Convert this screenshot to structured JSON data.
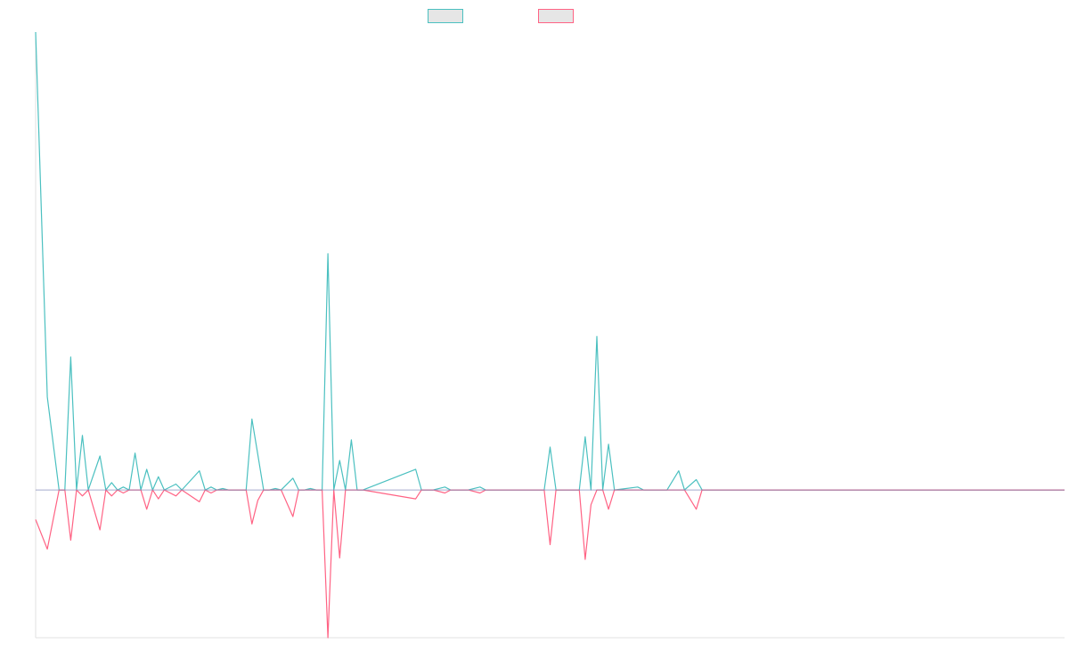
{
  "chart_data": {
    "type": "line",
    "title": "",
    "xlabel": "",
    "ylabel": "",
    "legend_position": "top-center",
    "grid": false,
    "ylim": [
      -100,
      310
    ],
    "xlim": [
      0,
      176
    ],
    "series": [
      {
        "color": "#4bc0c0",
        "points": [
          [
            0,
            310
          ],
          [
            2,
            63
          ],
          [
            4,
            0
          ],
          [
            5,
            0
          ],
          [
            6,
            90
          ],
          [
            7,
            0
          ],
          [
            8,
            37
          ],
          [
            9,
            0
          ],
          [
            11,
            23
          ],
          [
            12,
            0
          ],
          [
            13,
            5
          ],
          [
            14,
            0
          ],
          [
            15,
            2
          ],
          [
            16,
            0
          ],
          [
            17,
            25
          ],
          [
            18,
            0
          ],
          [
            19,
            14
          ],
          [
            20,
            0
          ],
          [
            21,
            9
          ],
          [
            22,
            0
          ],
          [
            24,
            4
          ],
          [
            25,
            0
          ],
          [
            28,
            13
          ],
          [
            29,
            0
          ],
          [
            30,
            2
          ],
          [
            31,
            0
          ],
          [
            32,
            1
          ],
          [
            33,
            0
          ],
          [
            34,
            0
          ],
          [
            35,
            0
          ],
          [
            36,
            0
          ],
          [
            37,
            48
          ],
          [
            38,
            24
          ],
          [
            39,
            0
          ],
          [
            40,
            0
          ],
          [
            41,
            1
          ],
          [
            42,
            0
          ],
          [
            44,
            8
          ],
          [
            45,
            0
          ],
          [
            46,
            0
          ],
          [
            47,
            1
          ],
          [
            48,
            0
          ],
          [
            49,
            0
          ],
          [
            50,
            160
          ],
          [
            51,
            0
          ],
          [
            52,
            20
          ],
          [
            53,
            0
          ],
          [
            54,
            34
          ],
          [
            55,
            0
          ],
          [
            56,
            0
          ],
          [
            65,
            14
          ],
          [
            66,
            0
          ],
          [
            68,
            0
          ],
          [
            70,
            2
          ],
          [
            71,
            0
          ],
          [
            74,
            0
          ],
          [
            76,
            2
          ],
          [
            77,
            0
          ],
          [
            87,
            0
          ],
          [
            88,
            29
          ],
          [
            89,
            0
          ],
          [
            93,
            0
          ],
          [
            94,
            36
          ],
          [
            95,
            0
          ],
          [
            96,
            104
          ],
          [
            97,
            0
          ],
          [
            98,
            31
          ],
          [
            99,
            0
          ],
          [
            103,
            2
          ],
          [
            104,
            0
          ],
          [
            105,
            0
          ],
          [
            106,
            0
          ],
          [
            108,
            0
          ],
          [
            110,
            13
          ],
          [
            111,
            0
          ],
          [
            113,
            7
          ],
          [
            114,
            0
          ],
          [
            176,
            0
          ]
        ]
      },
      {
        "color": "#ff6384",
        "points": [
          [
            0,
            -20
          ],
          [
            2,
            -40
          ],
          [
            4,
            0
          ],
          [
            5,
            0
          ],
          [
            6,
            -34
          ],
          [
            7,
            0
          ],
          [
            8,
            -4
          ],
          [
            9,
            0
          ],
          [
            11,
            -27
          ],
          [
            12,
            0
          ],
          [
            13,
            -4
          ],
          [
            14,
            0
          ],
          [
            15,
            -2
          ],
          [
            16,
            0
          ],
          [
            17,
            0
          ],
          [
            18,
            0
          ],
          [
            19,
            -13
          ],
          [
            20,
            0
          ],
          [
            21,
            -6
          ],
          [
            22,
            0
          ],
          [
            24,
            -4
          ],
          [
            25,
            0
          ],
          [
            28,
            -8
          ],
          [
            29,
            0
          ],
          [
            30,
            -2
          ],
          [
            31,
            0
          ],
          [
            32,
            0
          ],
          [
            33,
            0
          ],
          [
            34,
            0
          ],
          [
            35,
            0
          ],
          [
            36,
            0
          ],
          [
            37,
            -23
          ],
          [
            38,
            -7
          ],
          [
            39,
            0
          ],
          [
            40,
            0
          ],
          [
            41,
            0
          ],
          [
            42,
            0
          ],
          [
            44,
            -18
          ],
          [
            45,
            0
          ],
          [
            46,
            0
          ],
          [
            47,
            0
          ],
          [
            48,
            0
          ],
          [
            49,
            0
          ],
          [
            50,
            -100
          ],
          [
            51,
            0
          ],
          [
            52,
            -46
          ],
          [
            53,
            0
          ],
          [
            54,
            0
          ],
          [
            55,
            0
          ],
          [
            56,
            0
          ],
          [
            65,
            -6
          ],
          [
            66,
            0
          ],
          [
            68,
            0
          ],
          [
            70,
            -2
          ],
          [
            71,
            0
          ],
          [
            74,
            0
          ],
          [
            76,
            -2
          ],
          [
            77,
            0
          ],
          [
            87,
            0
          ],
          [
            88,
            -37
          ],
          [
            89,
            0
          ],
          [
            93,
            0
          ],
          [
            94,
            -47
          ],
          [
            95,
            -10
          ],
          [
            96,
            0
          ],
          [
            97,
            0
          ],
          [
            98,
            -13
          ],
          [
            99,
            0
          ],
          [
            103,
            0
          ],
          [
            104,
            0
          ],
          [
            105,
            0
          ],
          [
            106,
            0
          ],
          [
            108,
            0
          ],
          [
            110,
            0
          ],
          [
            111,
            0
          ],
          [
            113,
            -13
          ],
          [
            114,
            0
          ],
          [
            176,
            0
          ]
        ]
      }
    ]
  }
}
